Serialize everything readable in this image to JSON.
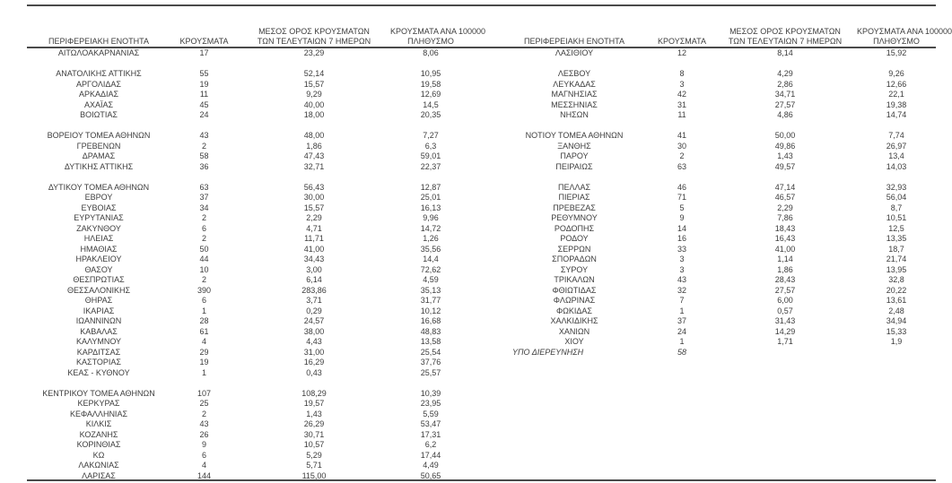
{
  "table": {
    "headers": {
      "region": "ΠΕΡΙΦΕΡΕΙΑΚΗ ΕΝΟΤΗΤΑ",
      "cases": "ΚΡΟΥΣΜΑΤΑ",
      "avg7_line1": "ΜΕΣΟΣ ΟΡΟΣ ΚΡΟΥΣΜΑΤΩΝ",
      "avg7_line2": "ΤΩΝ ΤΕΛΕΥΤΑΙΩΝ 7 ΗΜΕΡΩΝ",
      "per100k_line1": "ΚΡΟΥΣΜΑΤΑ ΑΝΑ 100000",
      "per100k_line2": "ΠΛΗΘΥΣΜΟ"
    },
    "rule_color": "#4a4a4a",
    "text_color": "#3d3d3d",
    "left_sections": [
      [
        {
          "name": "ΑΙΤΩΛΟΑΚΑΡΝΑΝΙΑΣ",
          "cases": "17",
          "avg7": "23,29",
          "per100k": "8,06"
        }
      ],
      [
        {
          "name": "ΑΝΑΤΟΛΙΚΗΣ ΑΤΤΙΚΗΣ",
          "cases": "55",
          "avg7": "52,14",
          "per100k": "10,95"
        },
        {
          "name": "ΑΡΓΟΛΙΔΑΣ",
          "cases": "19",
          "avg7": "15,57",
          "per100k": "19,58"
        },
        {
          "name": "ΑΡΚΑΔΙΑΣ",
          "cases": "11",
          "avg7": "9,29",
          "per100k": "12,69"
        },
        {
          "name": "ΑΧΑΪΑΣ",
          "cases": "45",
          "avg7": "40,00",
          "per100k": "14,5"
        },
        {
          "name": "ΒΟΙΩΤΙΑΣ",
          "cases": "24",
          "avg7": "18,00",
          "per100k": "20,35"
        }
      ],
      [
        {
          "name": "ΒΟΡΕΙΟΥ ΤΟΜΕΑ ΑΘΗΝΩΝ",
          "cases": "43",
          "avg7": "48,00",
          "per100k": "7,27"
        },
        {
          "name": "ΓΡΕΒΕΝΩΝ",
          "cases": "2",
          "avg7": "1,86",
          "per100k": "6,3"
        },
        {
          "name": "ΔΡΑΜΑΣ",
          "cases": "58",
          "avg7": "47,43",
          "per100k": "59,01"
        },
        {
          "name": "ΔΥΤΙΚΗΣ ΑΤΤΙΚΗΣ",
          "cases": "36",
          "avg7": "32,71",
          "per100k": "22,37"
        }
      ],
      [
        {
          "name": "ΔΥΤΙΚΟΥ ΤΟΜΕΑ ΑΘΗΝΩΝ",
          "cases": "63",
          "avg7": "56,43",
          "per100k": "12,87"
        },
        {
          "name": "ΕΒΡΟΥ",
          "cases": "37",
          "avg7": "30,00",
          "per100k": "25,01"
        },
        {
          "name": "ΕΥΒΟΙΑΣ",
          "cases": "34",
          "avg7": "15,57",
          "per100k": "16,13"
        },
        {
          "name": "ΕΥΡΥΤΑΝΙΑΣ",
          "cases": "2",
          "avg7": "2,29",
          "per100k": "9,96"
        },
        {
          "name": "ΖΑΚΥΝΘΟΥ",
          "cases": "6",
          "avg7": "4,71",
          "per100k": "14,72"
        },
        {
          "name": "ΗΛΕΙΑΣ",
          "cases": "2",
          "avg7": "11,71",
          "per100k": "1,26"
        },
        {
          "name": "ΗΜΑΘΙΑΣ",
          "cases": "50",
          "avg7": "41,00",
          "per100k": "35,56"
        },
        {
          "name": "ΗΡΑΚΛΕΙΟΥ",
          "cases": "44",
          "avg7": "34,43",
          "per100k": "14,4"
        },
        {
          "name": "ΘΑΣΟΥ",
          "cases": "10",
          "avg7": "3,00",
          "per100k": "72,62"
        },
        {
          "name": "ΘΕΣΠΡΩΤΙΑΣ",
          "cases": "2",
          "avg7": "6,14",
          "per100k": "4,59"
        },
        {
          "name": "ΘΕΣΣΑΛΟΝΙΚΗΣ",
          "cases": "390",
          "avg7": "283,86",
          "per100k": "35,13"
        },
        {
          "name": "ΘΗΡΑΣ",
          "cases": "6",
          "avg7": "3,71",
          "per100k": "31,77"
        },
        {
          "name": "ΙΚΑΡΙΑΣ",
          "cases": "1",
          "avg7": "0,29",
          "per100k": "10,12"
        },
        {
          "name": "ΙΩΑΝΝΙΝΩΝ",
          "cases": "28",
          "avg7": "24,57",
          "per100k": "16,68"
        },
        {
          "name": "ΚΑΒΑΛΑΣ",
          "cases": "61",
          "avg7": "38,00",
          "per100k": "48,83"
        },
        {
          "name": "ΚΑΛΥΜΝΟΥ",
          "cases": "4",
          "avg7": "4,43",
          "per100k": "13,58"
        },
        {
          "name": "ΚΑΡΔΙΤΣΑΣ",
          "cases": "29",
          "avg7": "31,00",
          "per100k": "25,54"
        },
        {
          "name": "ΚΑΣΤΟΡΙΑΣ",
          "cases": "19",
          "avg7": "16,29",
          "per100k": "37,76"
        },
        {
          "name": "ΚΕΑΣ - ΚΥΘΝΟΥ",
          "cases": "1",
          "avg7": "0,43",
          "per100k": "25,57"
        }
      ],
      [
        {
          "name": "ΚΕΝΤΡΙΚΟΥ ΤΟΜΕΑ ΑΘΗΝΩΝ",
          "cases": "107",
          "avg7": "108,29",
          "per100k": "10,39"
        },
        {
          "name": "ΚΕΡΚΥΡΑΣ",
          "cases": "25",
          "avg7": "19,57",
          "per100k": "23,95"
        },
        {
          "name": "ΚΕΦΑΛΛΗΝΙΑΣ",
          "cases": "2",
          "avg7": "1,43",
          "per100k": "5,59"
        },
        {
          "name": "ΚΙΛΚΙΣ",
          "cases": "43",
          "avg7": "26,29",
          "per100k": "53,47"
        },
        {
          "name": "ΚΟΖΑΝΗΣ",
          "cases": "26",
          "avg7": "30,71",
          "per100k": "17,31"
        },
        {
          "name": "ΚΟΡΙΝΘΙΑΣ",
          "cases": "9",
          "avg7": "10,57",
          "per100k": "6,2"
        },
        {
          "name": "ΚΩ",
          "cases": "6",
          "avg7": "5,29",
          "per100k": "17,44"
        },
        {
          "name": "ΛΑΚΩΝΙΑΣ",
          "cases": "4",
          "avg7": "5,71",
          "per100k": "4,49"
        },
        {
          "name": "ΛΑΡΙΣΑΣ",
          "cases": "144",
          "avg7": "115,00",
          "per100k": "50,65"
        }
      ]
    ],
    "right_sections": [
      [
        {
          "name": "ΛΑΣΙΘΙΟΥ",
          "cases": "12",
          "avg7": "8,14",
          "per100k": "15,92"
        }
      ],
      [
        {
          "name": "ΛΕΣΒΟΥ",
          "cases": "8",
          "avg7": "4,29",
          "per100k": "9,26"
        },
        {
          "name": "ΛΕΥΚΑΔΑΣ",
          "cases": "3",
          "avg7": "2,86",
          "per100k": "12,66"
        },
        {
          "name": "ΜΑΓΝΗΣΙΑΣ",
          "cases": "42",
          "avg7": "34,71",
          "per100k": "22,1"
        },
        {
          "name": "ΜΕΣΣΗΝΙΑΣ",
          "cases": "31",
          "avg7": "27,57",
          "per100k": "19,38"
        },
        {
          "name": "ΝΗΣΩΝ",
          "cases": "11",
          "avg7": "4,86",
          "per100k": "14,74"
        }
      ],
      [
        {
          "name": "ΝΟΤΙΟΥ ΤΟΜΕΑ ΑΘΗΝΩΝ",
          "cases": "41",
          "avg7": "50,00",
          "per100k": "7,74"
        },
        {
          "name": "ΞΑΝΘΗΣ",
          "cases": "30",
          "avg7": "49,86",
          "per100k": "26,97"
        },
        {
          "name": "ΠΑΡΟΥ",
          "cases": "2",
          "avg7": "1,43",
          "per100k": "13,4"
        },
        {
          "name": "ΠΕΙΡΑΙΩΣ",
          "cases": "63",
          "avg7": "49,57",
          "per100k": "14,03"
        }
      ],
      [
        {
          "name": "ΠΕΛΛΑΣ",
          "cases": "46",
          "avg7": "47,14",
          "per100k": "32,93"
        },
        {
          "name": "ΠΙΕΡΙΑΣ",
          "cases": "71",
          "avg7": "46,57",
          "per100k": "56,04"
        },
        {
          "name": "ΠΡΕΒΕΖΑΣ",
          "cases": "5",
          "avg7": "2,29",
          "per100k": "8,7"
        },
        {
          "name": "ΡΕΘΥΜΝΟΥ",
          "cases": "9",
          "avg7": "7,86",
          "per100k": "10,51"
        },
        {
          "name": "ΡΟΔΟΠΗΣ",
          "cases": "14",
          "avg7": "18,43",
          "per100k": "12,5"
        },
        {
          "name": "ΡΟΔΟΥ",
          "cases": "16",
          "avg7": "16,43",
          "per100k": "13,35"
        },
        {
          "name": "ΣΕΡΡΩΝ",
          "cases": "33",
          "avg7": "41,00",
          "per100k": "18,7"
        },
        {
          "name": "ΣΠΟΡΑΔΩΝ",
          "cases": "3",
          "avg7": "1,14",
          "per100k": "21,74"
        },
        {
          "name": "ΣΥΡΟΥ",
          "cases": "3",
          "avg7": "1,86",
          "per100k": "13,95"
        },
        {
          "name": "ΤΡΙΚΑΛΩΝ",
          "cases": "43",
          "avg7": "28,43",
          "per100k": "32,8"
        },
        {
          "name": "ΦΘΙΩΤΙΔΑΣ",
          "cases": "32",
          "avg7": "27,57",
          "per100k": "20,22"
        },
        {
          "name": "ΦΛΩΡΙΝΑΣ",
          "cases": "7",
          "avg7": "6,00",
          "per100k": "13,61"
        },
        {
          "name": "ΦΩΚΙΔΑΣ",
          "cases": "1",
          "avg7": "0,57",
          "per100k": "2,48"
        },
        {
          "name": "ΧΑΛΚΙΔΙΚΗΣ",
          "cases": "37",
          "avg7": "31,43",
          "per100k": "34,94"
        },
        {
          "name": "ΧΑΝΙΩΝ",
          "cases": "24",
          "avg7": "14,29",
          "per100k": "15,33"
        },
        {
          "name": "ΧΙΟΥ",
          "cases": "1",
          "avg7": "1,71",
          "per100k": "1,9"
        },
        {
          "name": "ΥΠΟ ΔΙΕΡΕΥΝΗΣΗ",
          "cases": "58",
          "avg7": "",
          "per100k": "",
          "italic": true
        }
      ],
      []
    ]
  }
}
